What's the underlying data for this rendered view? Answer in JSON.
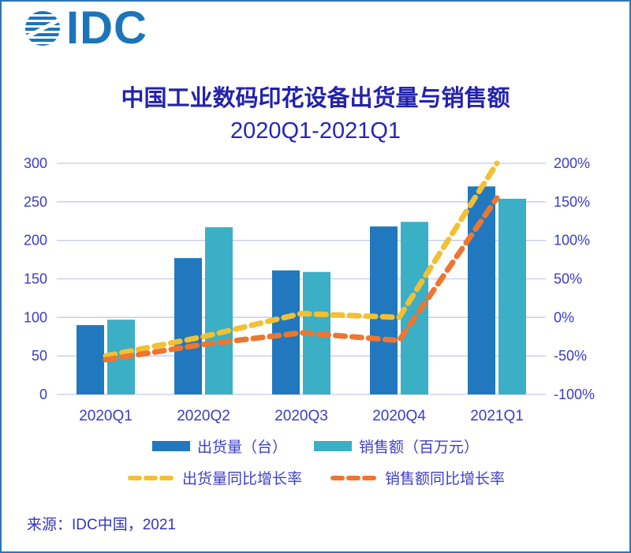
{
  "logo": {
    "text": "IDC"
  },
  "footer": {
    "source": "来源：IDC中国，2021"
  },
  "colors": {
    "bar1": "#2178BE",
    "bar2": "#3AAFC5",
    "line1": "#F2C032",
    "line2": "#ED7631",
    "grid": "#C7C7F0",
    "axis_text": "#3B3BC8",
    "title_text": "#2222AC",
    "legend_text": "#4040C8",
    "source_text": "#3535BC",
    "logo_blue": "#1B75BB",
    "frame_border": "#2E75B6"
  },
  "chart_data": {
    "type": "bar",
    "subtype": "combo-bar-line-dual-axis",
    "title": "中国工业数码印花设备出货量与销售额",
    "subtitle": "2020Q1-2021Q1",
    "categories": [
      "2020Q1",
      "2020Q2",
      "2020Q3",
      "2020Q4",
      "2021Q1"
    ],
    "bar_series": [
      {
        "name": "出货量（台）",
        "axis": "left",
        "color_key": "bar1",
        "values": [
          90,
          177,
          161,
          218,
          270
        ]
      },
      {
        "name": "销售额（百万元）",
        "axis": "left",
        "color_key": "bar2",
        "values": [
          97,
          217,
          159,
          224,
          254
        ]
      }
    ],
    "line_series": [
      {
        "name": "出货量同比增长率",
        "axis": "right",
        "color_key": "line1",
        "values_pct": [
          -50,
          -25,
          5,
          0,
          200
        ]
      },
      {
        "name": "销售额同比增长率",
        "axis": "right",
        "color_key": "line2",
        "values_pct": [
          -55,
          -35,
          -20,
          -30,
          155
        ]
      }
    ],
    "left_axis": {
      "min": 0,
      "max": 300,
      "step": 50,
      "ticks": [
        0,
        50,
        100,
        150,
        200,
        250,
        300
      ]
    },
    "right_axis": {
      "min": -100,
      "max": 200,
      "step": 50,
      "suffix": "%",
      "ticks": [
        "-100%",
        "-50%",
        "0%",
        "50%",
        "100%",
        "150%",
        "200%"
      ]
    },
    "grid": true,
    "legend_position": "bottom"
  },
  "legend": {
    "items": [
      {
        "label": "出货量（台）",
        "color_key": "bar1",
        "style": "bar"
      },
      {
        "label": "销售额（百万元）",
        "color_key": "bar2",
        "style": "bar"
      },
      {
        "label": "出货量同比增长率",
        "color_key": "line1",
        "style": "dash"
      },
      {
        "label": "销售额同比增长率",
        "color_key": "line2",
        "style": "dash"
      }
    ]
  }
}
